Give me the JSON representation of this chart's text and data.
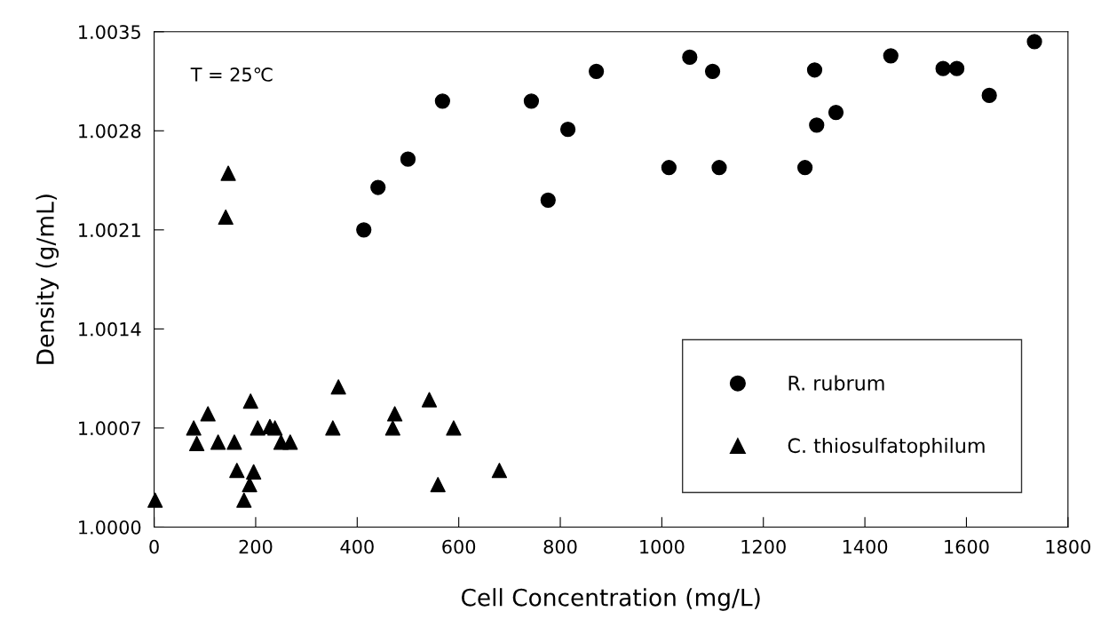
{
  "chart_data": {
    "type": "scatter",
    "xlabel": "Cell Concentration (mg/L)",
    "ylabel": "Density (g/mL)",
    "annotations": [
      "T = 25℃"
    ],
    "xlim": [
      0,
      1800
    ],
    "xticks": [
      0,
      200,
      400,
      600,
      800,
      1000,
      1200,
      1400,
      1600,
      1800
    ],
    "ylim": [
      1.0,
      1.0035
    ],
    "yticks": [
      {
        "value": 1.0,
        "label": "1.0000"
      },
      {
        "value": 1.0007,
        "label": "1.0007"
      },
      {
        "value": 1.0014,
        "label": "1.0014"
      },
      {
        "value": 1.0021,
        "label": "1.0021"
      },
      {
        "value": 1.0028,
        "label": "1.0028"
      },
      {
        "value": 1.0035,
        "label": "1.0035"
      }
    ],
    "grid": false,
    "legend": "bottom right",
    "series": [
      {
        "name": "R. rubrum",
        "color": "#000000",
        "marker": "circle",
        "x": [
          568,
          743,
          871,
          500,
          815,
          441,
          776,
          413,
          1055,
          1100,
          1301,
          1451,
          1554,
          1581,
          1645,
          1734,
          1343,
          1305,
          1014,
          1113,
          1282
        ],
        "values": [
          1.00301,
          1.00301,
          1.00322,
          1.0026,
          1.00281,
          1.0024,
          1.00231,
          1.0021,
          1.00332,
          1.00322,
          1.00323,
          1.00333,
          1.00324,
          1.00324,
          1.00305,
          1.00343,
          1.00293,
          1.00284,
          1.00254,
          1.00254,
          1.00254
        ]
      },
      {
        "name": "C. thiosulfatophilum",
        "color": "#000000",
        "marker": "triangle",
        "x": [
          2,
          78,
          84,
          106,
          126,
          158,
          190,
          163,
          196,
          188,
          177,
          204,
          228,
          238,
          250,
          268,
          352,
          363,
          474,
          470,
          542,
          590,
          559,
          680,
          146,
          141
        ],
        "values": [
          1.00019,
          1.0007,
          1.00059,
          1.0008,
          1.0006,
          1.0006,
          1.00089,
          1.0004,
          1.00039,
          1.0003,
          1.00019,
          1.0007,
          1.00071,
          1.0007,
          1.0006,
          1.0006,
          1.0007,
          1.00099,
          1.0008,
          1.0007,
          1.0009,
          1.0007,
          1.0003,
          1.0004,
          1.0025,
          1.00219
        ]
      }
    ]
  }
}
